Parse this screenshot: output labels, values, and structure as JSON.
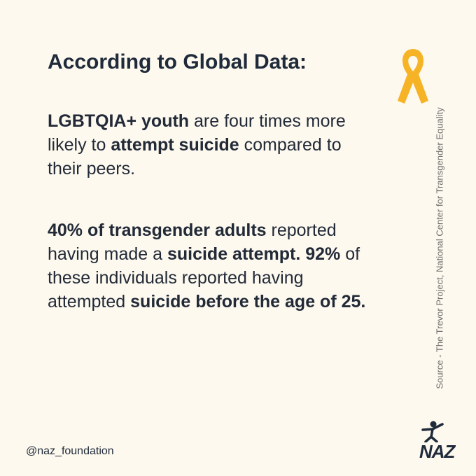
{
  "title": "According to Global Data:",
  "paragraphs": [
    {
      "runs": [
        {
          "text": "LGBTQIA+ youth",
          "bold": true
        },
        {
          "text": " are four times more likely to ",
          "bold": false
        },
        {
          "text": "attempt suicide",
          "bold": true
        },
        {
          "text": " compared to their peers.",
          "bold": false
        }
      ]
    },
    {
      "runs": [
        {
          "text": "40% of transgender adults",
          "bold": true
        },
        {
          "text": " reported having made a ",
          "bold": false
        },
        {
          "text": "suicide attempt. 92%",
          "bold": true
        },
        {
          "text": " of these individuals reported having attempted ",
          "bold": false
        },
        {
          "text": "suicide before the age of 25.",
          "bold": true
        }
      ]
    }
  ],
  "source": "Source - The Trevor Project, National Center for Transgender Equality",
  "handle": "@naz_foundation",
  "logo": "NAZ"
}
